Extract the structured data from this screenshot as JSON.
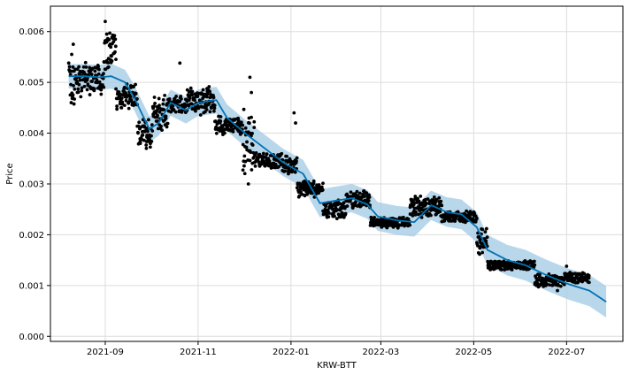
{
  "chart_data": {
    "type": "line",
    "title": "",
    "xlabel": "KRW-BTT",
    "ylabel": "Price",
    "grid": true,
    "x_ticks": [
      "2021-09-01",
      "2021-11-01",
      "2022-01-01",
      "2022-03-01",
      "2022-05-01",
      "2022-07-01"
    ],
    "x_tick_labels": [
      "2021-09",
      "2021-11",
      "2022-01",
      "2022-03",
      "2022-05",
      "2022-07"
    ],
    "y_ticks": [
      0.0,
      0.001,
      0.002,
      0.003,
      0.004,
      0.005,
      0.006
    ],
    "y_tick_labels": [
      "0.000",
      "0.001",
      "0.002",
      "0.003",
      "0.004",
      "0.005",
      "0.006"
    ],
    "xlim": [
      "2021-07-27",
      "2022-08-07"
    ],
    "ylim": [
      -0.0001,
      0.0065
    ],
    "colors": {
      "forecast_line": "#0072B2",
      "uncertainty_band": "#A7CDE6",
      "observed_points": "#000000",
      "grid": "#dddddd"
    },
    "series": [
      {
        "kind": "forecast",
        "points": [
          [
            "2021-08-08",
            0.00512
          ],
          [
            "2021-08-18",
            0.00512
          ],
          [
            "2021-08-28",
            0.0051
          ],
          [
            "2021-09-05",
            0.00512
          ],
          [
            "2021-09-14",
            0.005
          ],
          [
            "2021-09-20",
            0.0047
          ],
          [
            "2021-09-30",
            0.00408
          ],
          [
            "2021-10-06",
            0.0042
          ],
          [
            "2021-10-14",
            0.0046
          ],
          [
            "2021-10-24",
            0.00445
          ],
          [
            "2021-11-01",
            0.0046
          ],
          [
            "2021-11-13",
            0.00465
          ],
          [
            "2021-11-20",
            0.0043
          ],
          [
            "2021-12-03",
            0.00397
          ],
          [
            "2021-12-17",
            0.00365
          ],
          [
            "2021-12-27",
            0.00342
          ],
          [
            "2022-01-09",
            0.0032
          ],
          [
            "2022-01-20",
            0.00262
          ],
          [
            "2022-02-01",
            0.00268
          ],
          [
            "2022-02-10",
            0.00272
          ],
          [
            "2022-02-20",
            0.0026
          ],
          [
            "2022-02-27",
            0.00236
          ],
          [
            "2022-03-12",
            0.00228
          ],
          [
            "2022-03-23",
            0.00225
          ],
          [
            "2022-04-03",
            0.00258
          ],
          [
            "2022-04-13",
            0.00245
          ],
          [
            "2022-04-23",
            0.0024
          ],
          [
            "2022-05-03",
            0.00215
          ],
          [
            "2022-05-10",
            0.0017
          ],
          [
            "2022-05-23",
            0.0015
          ],
          [
            "2022-06-04",
            0.0014
          ],
          [
            "2022-06-18",
            0.0012
          ],
          [
            "2022-07-02",
            0.00103
          ],
          [
            "2022-07-16",
            0.0009
          ],
          [
            "2022-07-27",
            0.00068
          ]
        ],
        "band_halfwidth": 0.00024
      },
      {
        "kind": "observed",
        "segments": [
          {
            "start": "2021-08-08",
            "end": "2021-08-12",
            "center": 0.005,
            "spread": 0.0007
          },
          {
            "start": "2021-08-12",
            "end": "2021-08-31",
            "center": 0.00505,
            "spread": 0.00035
          },
          {
            "start": "2021-08-31",
            "end": "2021-09-08",
            "center": 0.0056,
            "spread": 0.00045
          },
          {
            "start": "2021-09-08",
            "end": "2021-09-22",
            "center": 0.0047,
            "spread": 0.0003
          },
          {
            "start": "2021-09-22",
            "end": "2021-10-02",
            "center": 0.004,
            "spread": 0.0003
          },
          {
            "start": "2021-10-02",
            "end": "2021-10-12",
            "center": 0.0044,
            "spread": 0.0004
          },
          {
            "start": "2021-10-12",
            "end": "2021-10-24",
            "center": 0.00455,
            "spread": 0.0002
          },
          {
            "start": "2021-10-24",
            "end": "2021-11-12",
            "center": 0.00465,
            "spread": 0.0003
          },
          {
            "start": "2021-11-12",
            "end": "2021-11-30",
            "center": 0.00415,
            "spread": 0.0002
          },
          {
            "start": "2021-11-30",
            "end": "2021-12-08",
            "center": 0.0038,
            "spread": 0.0007
          },
          {
            "start": "2021-12-08",
            "end": "2021-12-25",
            "center": 0.00345,
            "spread": 0.00018
          },
          {
            "start": "2021-12-25",
            "end": "2022-01-05",
            "center": 0.0034,
            "spread": 0.00025
          },
          {
            "start": "2022-01-05",
            "end": "2022-01-22",
            "center": 0.0029,
            "spread": 0.00018
          },
          {
            "start": "2022-01-22",
            "end": "2022-02-06",
            "center": 0.0025,
            "spread": 0.0002
          },
          {
            "start": "2022-02-06",
            "end": "2022-02-22",
            "center": 0.0027,
            "spread": 0.00018
          },
          {
            "start": "2022-02-22",
            "end": "2022-03-20",
            "center": 0.00225,
            "spread": 0.00012
          },
          {
            "start": "2022-03-20",
            "end": "2022-04-10",
            "center": 0.00255,
            "spread": 0.00022
          },
          {
            "start": "2022-04-10",
            "end": "2022-05-03",
            "center": 0.00235,
            "spread": 0.00012
          },
          {
            "start": "2022-05-03",
            "end": "2022-05-10",
            "center": 0.0019,
            "spread": 0.0003
          },
          {
            "start": "2022-05-10",
            "end": "2022-06-10",
            "center": 0.0014,
            "spread": 0.0001
          },
          {
            "start": "2022-06-10",
            "end": "2022-06-30",
            "center": 0.0011,
            "spread": 0.00015
          },
          {
            "start": "2022-06-30",
            "end": "2022-07-16",
            "center": 0.00115,
            "spread": 0.00012
          }
        ],
        "spikes": [
          [
            "2021-08-11",
            0.00575
          ],
          [
            "2021-09-01",
            0.0062
          ],
          [
            "2021-09-02",
            0.00595
          ],
          [
            "2021-10-20",
            0.00538
          ],
          [
            "2021-12-05",
            0.0051
          ],
          [
            "2021-12-06",
            0.0048
          ],
          [
            "2022-01-03",
            0.0044
          ],
          [
            "2022-01-04",
            0.0042
          ],
          [
            "2021-12-04",
            0.003
          ],
          [
            "2021-09-28",
            0.0037
          ],
          [
            "2022-06-25",
            0.0009
          ],
          [
            "2022-07-01",
            0.00138
          ]
        ]
      }
    ]
  }
}
